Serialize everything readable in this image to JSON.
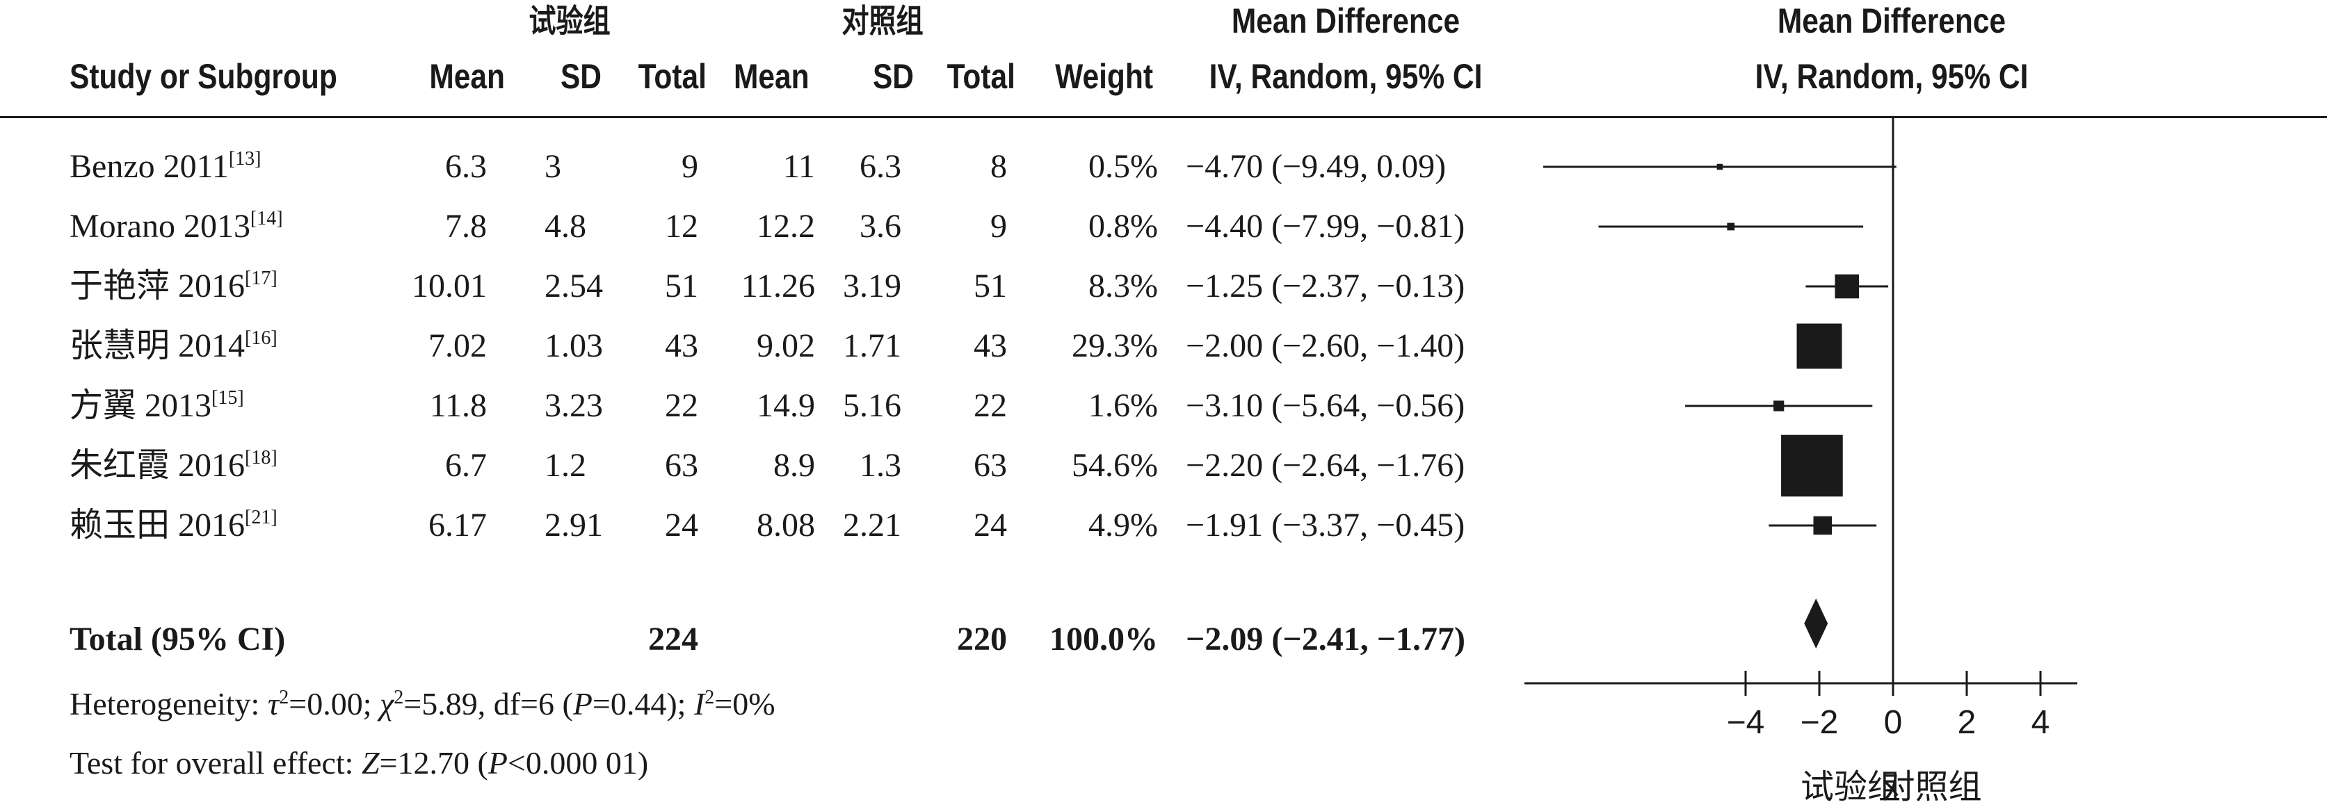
{
  "header": {
    "group_exp": "试验组",
    "group_ctrl": "对照组",
    "col_study": "Study or Subgroup",
    "col_mean": "Mean",
    "col_sd": "SD",
    "col_total": "Total",
    "col_weight": "Weight",
    "md_title": "Mean Difference",
    "md_method": "IV, Random, 95% CI"
  },
  "rows": [
    {
      "study": "Benzo 2011",
      "ref": "[13]",
      "e_mean": "6.3",
      "e_sd": "3",
      "e_total": "9",
      "c_mean": "11",
      "c_sd": "6.3",
      "c_total": "8",
      "weight": "0.5%",
      "ci": "−4.70 (−9.49, 0.09)"
    },
    {
      "study": "Morano 2013",
      "ref": "[14]",
      "e_mean": "7.8",
      "e_sd": "4.8",
      "e_total": "12",
      "c_mean": "12.2",
      "c_sd": "3.6",
      "c_total": "9",
      "weight": "0.8%",
      "ci": "−4.40 (−7.99, −0.81)"
    },
    {
      "study": "于艳萍 2016",
      "ref": "[17]",
      "e_mean": "10.01",
      "e_sd": "2.54",
      "e_total": "51",
      "c_mean": "11.26",
      "c_sd": "3.19",
      "c_total": "51",
      "weight": "8.3%",
      "ci": "−1.25 (−2.37, −0.13)"
    },
    {
      "study": "张慧明 2014",
      "ref": "[16]",
      "e_mean": "7.02",
      "e_sd": "1.03",
      "e_total": "43",
      "c_mean": "9.02",
      "c_sd": "1.71",
      "c_total": "43",
      "weight": "29.3%",
      "ci": "−2.00 (−2.60, −1.40)"
    },
    {
      "study": "方翼 2013",
      "ref": "[15]",
      "e_mean": "11.8",
      "e_sd": "3.23",
      "e_total": "22",
      "c_mean": "14.9",
      "c_sd": "5.16",
      "c_total": "22",
      "weight": "1.6%",
      "ci": "−3.10 (−5.64, −0.56)"
    },
    {
      "study": "朱红霞 2016",
      "ref": "[18]",
      "e_mean": "6.7",
      "e_sd": "1.2",
      "e_total": "63",
      "c_mean": "8.9",
      "c_sd": "1.3",
      "c_total": "63",
      "weight": "54.6%",
      "ci": "−2.20 (−2.64, −1.76)"
    },
    {
      "study": "赖玉田 2016",
      "ref": "[21]",
      "e_mean": "6.17",
      "e_sd": "2.91",
      "e_total": "24",
      "c_mean": "8.08",
      "c_sd": "2.21",
      "c_total": "24",
      "weight": "4.9%",
      "ci": "−1.91 (−3.37, −0.45)"
    }
  ],
  "total": {
    "label": "Total (95% CI)",
    "e_total": "224",
    "c_total": "220",
    "weight": "100.0%",
    "ci": "−2.09 (−2.41, −1.77)"
  },
  "footer": {
    "het_prefix": "Heterogeneity: ",
    "tau": "τ",
    "tau_val": "=0.00; ",
    "chi": "χ",
    "chi_val": "=5.89, df=6 (",
    "p1": "P",
    "p1_val": "=0.44); ",
    "i": "I",
    "i_val": "=0%",
    "sq": "2",
    "overall_prefix": "Test for overall effect: ",
    "z": "Z",
    "z_val": "=12.70 (",
    "p2": "P",
    "p2_val": "<0.000 01)"
  },
  "chart_data": {
    "type": "scatter",
    "subtype": "forest",
    "title": "Mean Difference",
    "subtitle": "IV, Random, 95% CI",
    "xlim": [
      -10,
      5
    ],
    "xticks": [
      -4,
      -2,
      0,
      2,
      4
    ],
    "xtick_labels": [
      "−4",
      "−2",
      "0",
      "2",
      "4"
    ],
    "favours_left": "试验组",
    "favours_right": "对照组",
    "studies": [
      {
        "md": -4.7,
        "lo": -9.49,
        "hi": 0.09,
        "weight": 0.5
      },
      {
        "md": -4.4,
        "lo": -7.99,
        "hi": -0.81,
        "weight": 0.8
      },
      {
        "md": -1.25,
        "lo": -2.37,
        "hi": -0.13,
        "weight": 8.3
      },
      {
        "md": -2.0,
        "lo": -2.6,
        "hi": -1.4,
        "weight": 29.3
      },
      {
        "md": -3.1,
        "lo": -5.64,
        "hi": -0.56,
        "weight": 1.6
      },
      {
        "md": -2.2,
        "lo": -2.64,
        "hi": -1.76,
        "weight": 54.6
      },
      {
        "md": -1.91,
        "lo": -3.37,
        "hi": -0.45,
        "weight": 4.9
      }
    ],
    "pooled": {
      "md": -2.09,
      "lo": -2.41,
      "hi": -1.77
    }
  },
  "colors": {
    "ink": "#1a1a1a"
  }
}
